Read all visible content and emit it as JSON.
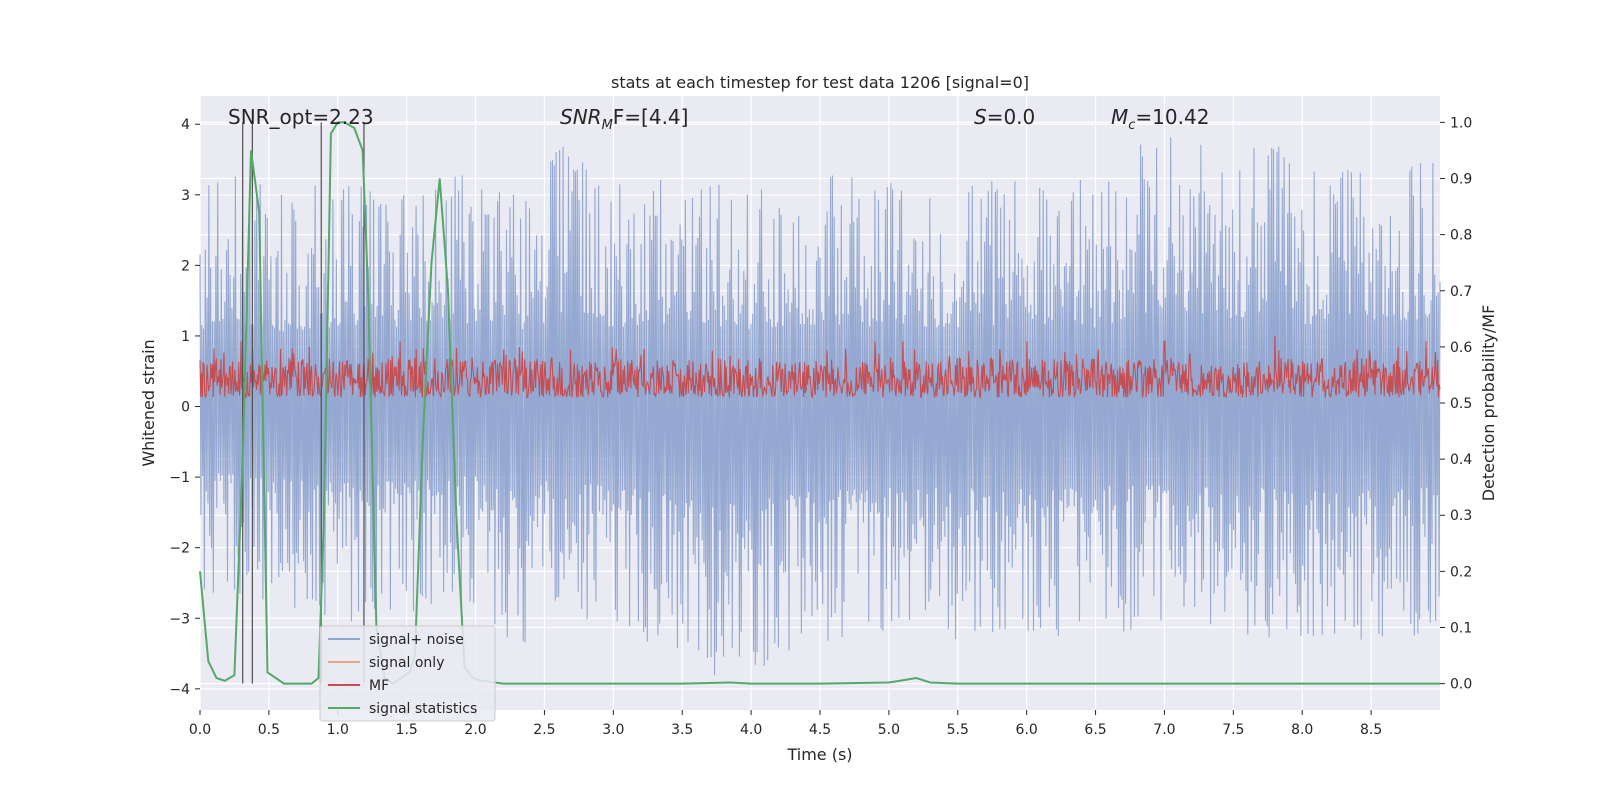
{
  "chart_data": {
    "type": "line",
    "title": "stats at each timestep for test data 1206 [signal=0]",
    "xlabel": "Time (s)",
    "ylabel": "Whitened strain",
    "y2label": "Detection probability/MF",
    "xlim": [
      0.0,
      9.0
    ],
    "ylim": [
      -4.3,
      4.4
    ],
    "y2lim": [
      -0.047,
      1.047
    ],
    "xticks": [
      0.0,
      0.5,
      1.0,
      1.5,
      2.0,
      2.5,
      3.0,
      3.5,
      4.0,
      4.5,
      5.0,
      5.5,
      6.0,
      6.5,
      7.0,
      7.5,
      8.0,
      8.5
    ],
    "yticks": [
      4,
      3,
      2,
      1,
      0,
      -1,
      -2,
      -3,
      -4
    ],
    "y2ticks": [
      1.0,
      0.9,
      0.8,
      0.7,
      0.6,
      0.5,
      0.4,
      0.3,
      0.2,
      0.1,
      0.0
    ],
    "annotations": [
      {
        "label": "SNR_opt=2.23"
      },
      {
        "label": "F=[4.4]",
        "prefix": "SNR",
        "sub": "M"
      },
      {
        "label": "=0.0",
        "prefix": "S",
        "sub": ""
      },
      {
        "label": "=10.42",
        "prefix": "M",
        "sub": "c"
      }
    ],
    "vertical_markers_x": [
      0.31,
      0.38,
      0.88,
      1.19
    ],
    "legend": {
      "placement": "lower-left",
      "entries": [
        "signal+ noise",
        "signal only",
        "MF",
        "signal statistics"
      ]
    },
    "colors": {
      "signal_noise": "#8fa4cf",
      "signal_only": "#e8a585",
      "mf": "#c44e52",
      "statistics": "#55a868",
      "markers": "#505050",
      "plot_bg": "#eaeaf2",
      "grid": "#ffffff"
    },
    "series": [
      {
        "name": "signal+ noise",
        "axis": "left",
        "description_of_envelope": "dense whitened noise, mostly within -2.5..3.5 with spikes to about 4 and -3.9",
        "upper_envelope_points": {
          "x": [
            0.0,
            0.25,
            0.5,
            1.0,
            1.5,
            2.0,
            2.5,
            2.55,
            3.0,
            3.5,
            4.0,
            4.5,
            5.0,
            5.5,
            6.0,
            6.5,
            7.0,
            7.5,
            7.8,
            8.0,
            8.5,
            9.0
          ],
          "y": [
            3.1,
            3.6,
            3.0,
            3.2,
            3.1,
            3.4,
            3.0,
            3.8,
            3.2,
            3.4,
            3.1,
            3.3,
            3.2,
            3.2,
            3.3,
            3.2,
            4.0,
            3.5,
            4.0,
            3.3,
            3.5,
            3.5
          ]
        },
        "lower_envelope_points": {
          "x": [
            0.0,
            0.5,
            1.0,
            1.5,
            2.0,
            2.3,
            2.5,
            3.0,
            3.5,
            3.6,
            4.0,
            4.5,
            5.0,
            5.5,
            6.0,
            6.5,
            7.0,
            7.5,
            8.0,
            8.5,
            8.9,
            9.0
          ],
          "y": [
            -2.6,
            -2.9,
            -3.1,
            -3.0,
            -2.8,
            -3.5,
            -3.0,
            -3.2,
            -3.6,
            -3.9,
            -3.8,
            -3.4,
            -3.3,
            -3.3,
            -3.3,
            -3.2,
            -3.2,
            -3.3,
            -3.3,
            -3.4,
            -3.2,
            -3.0
          ]
        }
      },
      {
        "name": "MF",
        "axis": "right",
        "band_low": 0.51,
        "band_typical_high": 0.58,
        "peaks": {
          "x": [
            0.3,
            1.45,
            4.9,
            5.1,
            6.0,
            7.0,
            7.8,
            8.9
          ],
          "y": [
            0.61,
            0.61,
            0.61,
            0.61,
            0.61,
            0.61,
            0.62,
            0.61
          ]
        }
      },
      {
        "name": "signal statistics",
        "axis": "right",
        "x": [
          0.0,
          0.06,
          0.12,
          0.18,
          0.25,
          0.31,
          0.37,
          0.43,
          0.49,
          0.55,
          0.61,
          0.68,
          0.74,
          0.81,
          0.86,
          0.9,
          0.95,
          1.0,
          1.05,
          1.12,
          1.18,
          1.22,
          1.28,
          1.34,
          1.4,
          1.46,
          1.52,
          1.56,
          1.62,
          1.68,
          1.74,
          1.8,
          1.86,
          1.92,
          1.98,
          2.05,
          2.2,
          2.6,
          3.0,
          3.5,
          3.85,
          4.0,
          4.5,
          5.0,
          5.1,
          5.2,
          5.3,
          5.5,
          6.0,
          7.0,
          8.0,
          9.0
        ],
        "y": [
          0.2,
          0.04,
          0.01,
          0.005,
          0.015,
          0.4,
          0.95,
          0.84,
          0.02,
          0.01,
          0.0,
          0.0,
          0.0,
          0.0,
          0.01,
          0.3,
          0.98,
          1.0,
          1.0,
          0.99,
          0.95,
          0.7,
          0.1,
          0.01,
          0.0,
          0.01,
          0.02,
          0.05,
          0.45,
          0.75,
          0.9,
          0.7,
          0.3,
          0.03,
          0.01,
          0.005,
          0.0,
          0.0,
          0.0,
          0.0,
          0.002,
          0.0,
          0.0,
          0.002,
          0.006,
          0.01,
          0.002,
          0.0,
          0.0,
          0.0,
          0.0,
          0.0
        ]
      }
    ]
  }
}
